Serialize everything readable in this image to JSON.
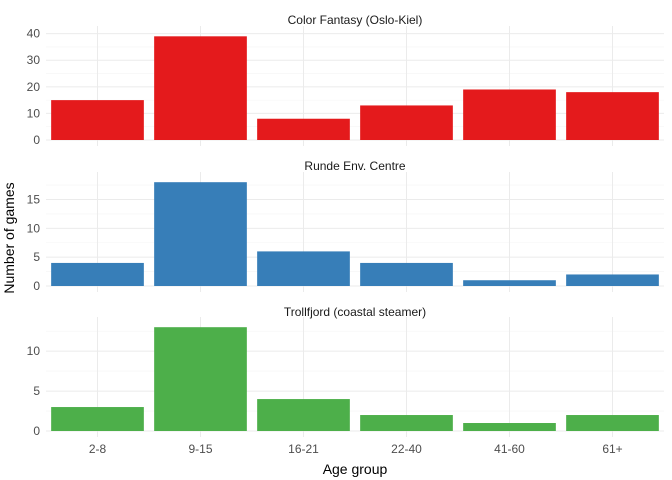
{
  "chart_data": {
    "type": "bar",
    "categories": [
      "2-8",
      "9-15",
      "16-21",
      "22-40",
      "41-60",
      "61+"
    ],
    "xlabel": "Age group",
    "ylabel": "Number of games",
    "grid": true,
    "legend": "none",
    "panels": [
      {
        "title": "Color Fantasy (Oslo-Kiel)",
        "color": "#e41a1c",
        "values": [
          15,
          39,
          8,
          13,
          19,
          18
        ],
        "ylim": [
          0,
          41
        ],
        "yticks": [
          0,
          10,
          20,
          30,
          40
        ]
      },
      {
        "title": "Runde Env. Centre",
        "color": "#377eb8",
        "values": [
          4,
          18,
          6,
          4,
          1,
          2
        ],
        "ylim": [
          0,
          18.9
        ],
        "yticks": [
          0,
          5,
          10,
          15
        ]
      },
      {
        "title": "Trollfjord (coastal steamer)",
        "color": "#4daf4a",
        "values": [
          3,
          13,
          4,
          2,
          1,
          2
        ],
        "ylim": [
          0,
          13.65
        ],
        "yticks": [
          0,
          5,
          10
        ]
      }
    ]
  }
}
